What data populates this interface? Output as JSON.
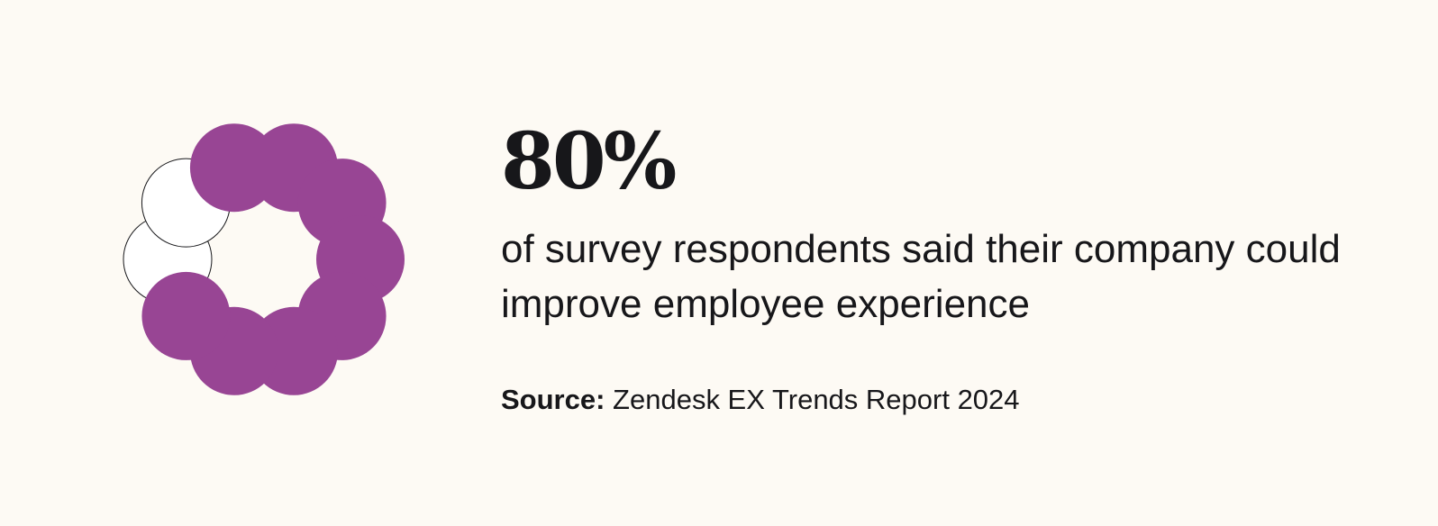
{
  "stat": {
    "value": "80%",
    "description": "of survey respondents said their company could improve employee experience"
  },
  "source": {
    "label": "Source:",
    "text": "Zendesk EX Trends Report 2024"
  },
  "chart_data": {
    "type": "pie",
    "style": "ring of circles",
    "total_units": 10,
    "filled_units": 8,
    "value_percent": 80,
    "colors": {
      "filled": "#984594",
      "empty": "#ffffff",
      "outline": "#17171a"
    }
  }
}
